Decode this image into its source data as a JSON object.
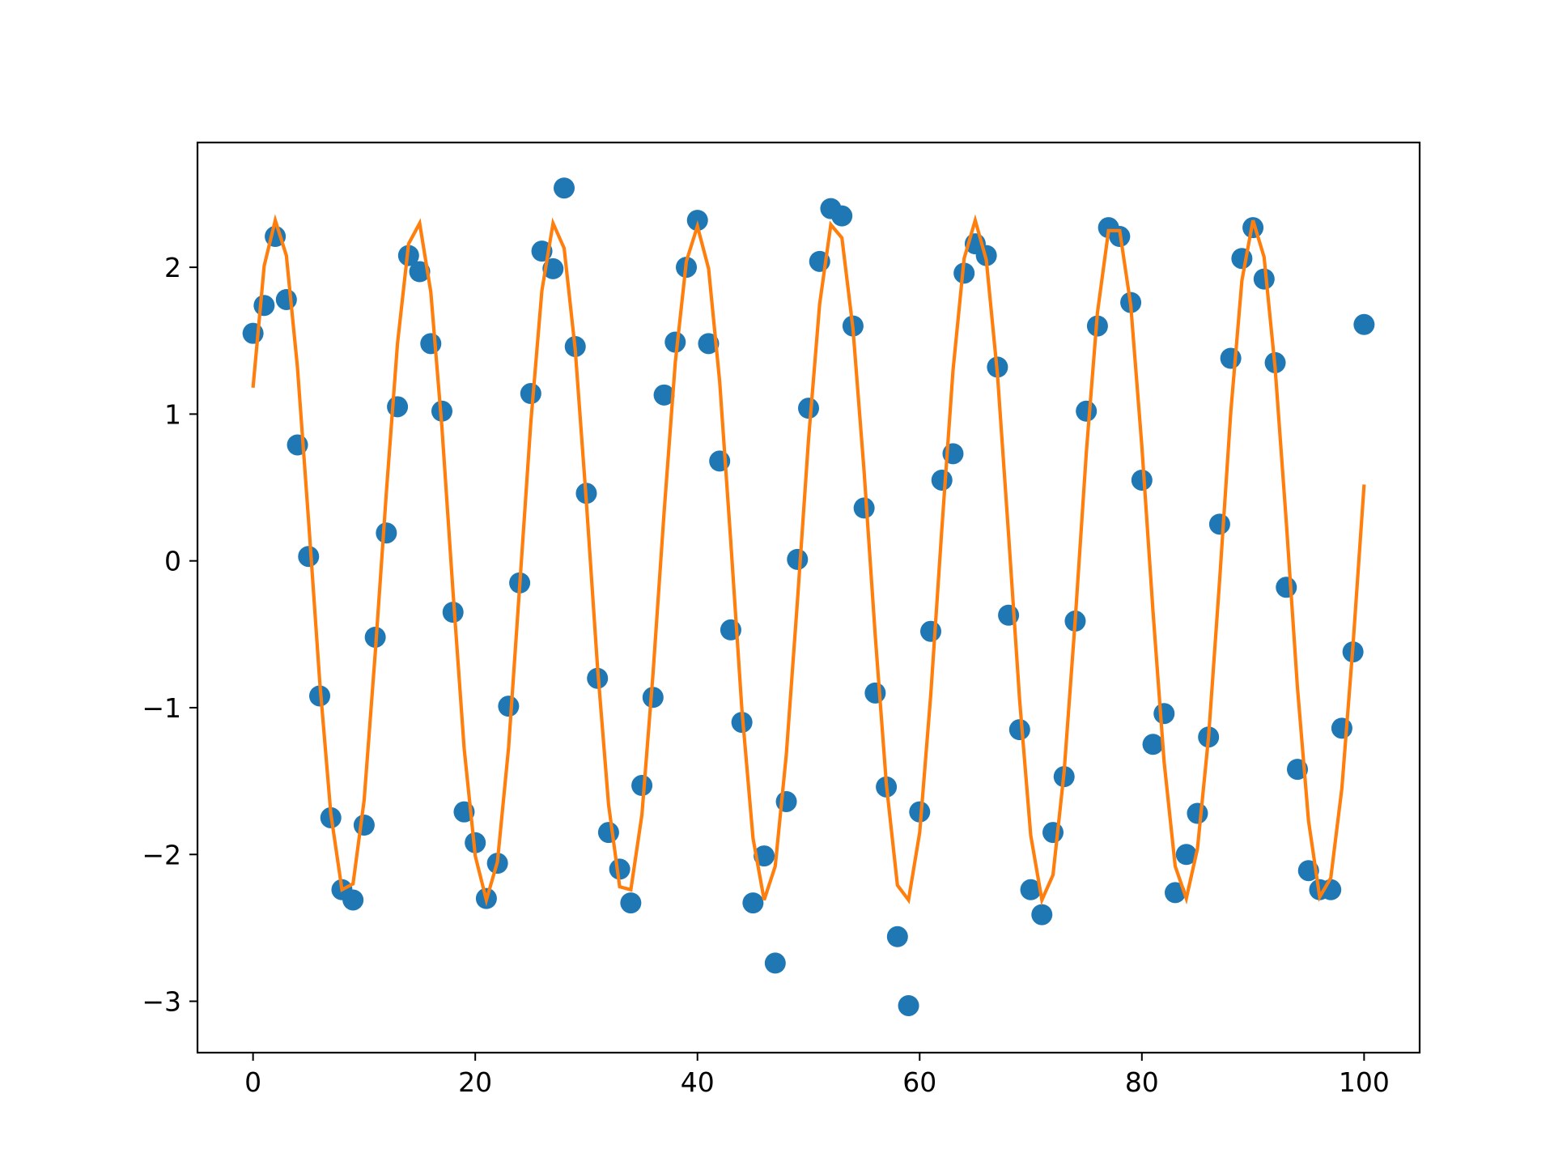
{
  "chart_data": {
    "type": "scatter",
    "title": "",
    "xlabel": "",
    "ylabel": "",
    "xlim": [
      -5,
      105
    ],
    "ylim": [
      -3.35,
      2.85
    ],
    "xticks": [
      0,
      20,
      40,
      60,
      80,
      100
    ],
    "yticks": [
      -3,
      -2,
      -1,
      0,
      1,
      2
    ],
    "xtick_labels": [
      "0",
      "20",
      "40",
      "60",
      "80",
      "100"
    ],
    "ytick_labels": [
      "−3",
      "−2",
      "−1",
      "0",
      "1",
      "2"
    ],
    "grid": false,
    "legend": "none",
    "series": [
      {
        "type": "scatter",
        "color": "#1f77b4",
        "x": [
          0,
          1,
          2,
          3,
          4,
          5,
          6,
          7,
          8,
          9,
          10,
          11,
          12,
          13,
          14,
          15,
          16,
          17,
          18,
          19,
          20,
          21,
          22,
          23,
          24,
          25,
          26,
          27,
          28,
          29,
          30,
          31,
          32,
          33,
          34,
          35,
          36,
          37,
          38,
          39,
          40,
          41,
          42,
          43,
          44,
          45,
          46,
          47,
          48,
          49,
          50,
          51,
          52,
          53,
          54,
          55,
          56,
          57,
          58,
          59,
          60,
          61,
          62,
          63,
          64,
          65,
          66,
          67,
          68,
          69,
          70,
          71,
          72,
          73,
          74,
          75,
          76,
          77,
          78,
          79,
          80,
          81,
          82,
          83,
          84,
          85,
          86,
          87,
          88,
          89,
          90,
          91,
          92,
          93,
          94,
          95,
          96,
          97,
          98,
          99,
          100
        ],
        "y": [
          1.55,
          1.74,
          2.21,
          1.78,
          0.79,
          0.03,
          -0.92,
          -1.75,
          -2.24,
          -2.31,
          -1.8,
          -0.52,
          0.19,
          1.05,
          2.08,
          1.97,
          1.48,
          1.02,
          -0.35,
          -1.71,
          -1.92,
          -2.3,
          -2.06,
          -0.99,
          -0.15,
          1.14,
          2.11,
          1.99,
          2.54,
          1.46,
          0.46,
          -0.8,
          -1.85,
          -2.1,
          -2.33,
          -1.53,
          -0.93,
          1.13,
          1.49,
          2.0,
          2.32,
          1.48,
          0.68,
          -0.47,
          -1.1,
          -2.33,
          -2.01,
          -2.74,
          -1.64,
          0.01,
          1.04,
          2.04,
          2.4,
          2.35,
          1.6,
          0.36,
          -0.9,
          -1.54,
          -2.56,
          -3.03,
          -1.71,
          -0.48,
          0.55,
          0.73,
          1.96,
          2.16,
          2.08,
          1.32,
          -0.37,
          -1.15,
          -2.24,
          -2.41,
          -1.85,
          -1.47,
          -0.41,
          1.02,
          1.6,
          2.27,
          2.21,
          1.76,
          0.55,
          -1.25,
          -1.04,
          -2.26,
          -2.0,
          -1.72,
          -1.2,
          0.25,
          1.38,
          2.06,
          2.27,
          1.92,
          1.35,
          -0.18,
          -1.42,
          -2.11,
          -2.24,
          -2.24,
          -1.14,
          -0.62,
          1.61
        ]
      },
      {
        "type": "line",
        "color": "#ff7f0e",
        "x": [
          0,
          1,
          2,
          3,
          4,
          5,
          6,
          7,
          8,
          9,
          10,
          11,
          12,
          13,
          14,
          15,
          16,
          17,
          18,
          19,
          20,
          21,
          22,
          23,
          24,
          25,
          26,
          27,
          28,
          29,
          30,
          31,
          32,
          33,
          34,
          35,
          36,
          37,
          38,
          39,
          40,
          41,
          42,
          43,
          44,
          45,
          46,
          47,
          48,
          49,
          50,
          51,
          52,
          53,
          54,
          55,
          56,
          57,
          58,
          59,
          60,
          61,
          62,
          63,
          64,
          65,
          66,
          67,
          68,
          69,
          70,
          71,
          72,
          73,
          74,
          75,
          76,
          77,
          78,
          79,
          80,
          81,
          82,
          83,
          84,
          85,
          86,
          87,
          88,
          89,
          90,
          91,
          92,
          93,
          94,
          95,
          96,
          97,
          98,
          99,
          100
        ],
        "y": [
          1.18,
          2.01,
          2.32,
          2.08,
          1.32,
          0.27,
          -0.82,
          -1.72,
          -2.24,
          -2.2,
          -1.63,
          -0.63,
          0.47,
          1.48,
          2.16,
          2.3,
          1.83,
          0.91,
          -0.21,
          -1.28,
          -2.01,
          -2.31,
          -2.05,
          -1.27,
          -0.17,
          0.94,
          1.84,
          2.3,
          2.13,
          1.44,
          0.4,
          -0.72,
          -1.66,
          -2.22,
          -2.24,
          -1.73,
          -0.77,
          0.33,
          1.35,
          2.04,
          2.28,
          1.99,
          1.22,
          0.13,
          -1.01,
          -1.89,
          -2.31,
          -2.08,
          -1.32,
          -0.27,
          0.83,
          1.75,
          2.29,
          2.2,
          1.58,
          0.61,
          -0.51,
          -1.52,
          -2.21,
          -2.31,
          -1.85,
          -0.91,
          0.22,
          1.3,
          2.06,
          2.32,
          2.05,
          1.27,
          0.18,
          -0.95,
          -1.87,
          -2.31,
          -2.14,
          -1.44,
          -0.4,
          0.74,
          1.69,
          2.25,
          2.25,
          1.74,
          0.78,
          -0.34,
          -1.37,
          -2.08,
          -2.3,
          -1.96,
          -1.2,
          -0.13,
          1.01,
          1.91,
          2.32,
          2.07,
          1.31,
          0.26,
          -0.86,
          -1.77,
          -2.29,
          -2.16,
          -1.55,
          -0.58,
          0.52
        ]
      }
    ]
  }
}
